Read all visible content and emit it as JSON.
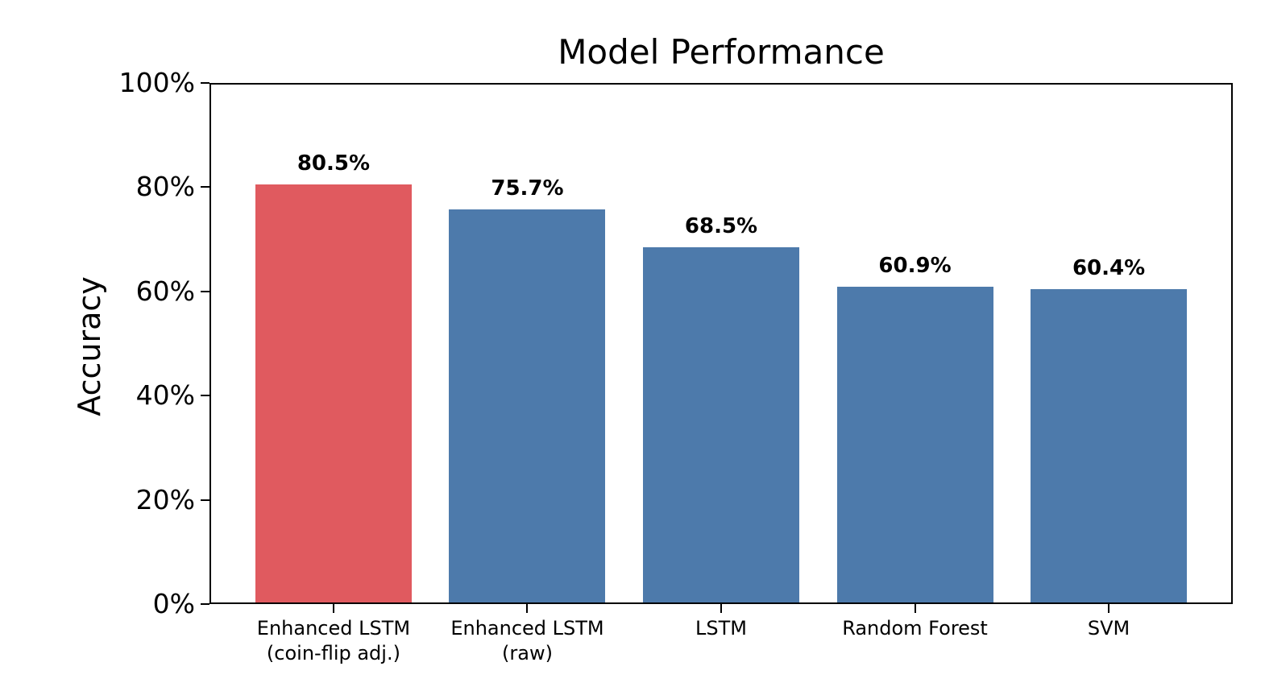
{
  "chart_data": {
    "type": "bar",
    "title": "Model Performance",
    "xlabel": "",
    "ylabel": "Accuracy",
    "categories": [
      "Enhanced LSTM\n(coin-flip adj.)",
      "Enhanced LSTM\n(raw)",
      "LSTM",
      "Random Forest",
      "SVM"
    ],
    "values": [
      80.5,
      75.7,
      68.5,
      60.9,
      60.4
    ],
    "value_labels": [
      "80.5%",
      "75.7%",
      "68.5%",
      "60.9%",
      "60.4%"
    ],
    "bar_colors": [
      "#e05a5f",
      "#4d7aab",
      "#4d7aab",
      "#4d7aab",
      "#4d7aab"
    ],
    "highlight_color": "#e05a5f",
    "base_color": "#4d7aab",
    "ylim": [
      0,
      100
    ],
    "yticks": [
      0,
      20,
      40,
      60,
      80,
      100
    ],
    "ytick_labels": [
      "0%",
      "20%",
      "40%",
      "60%",
      "80%",
      "100%"
    ],
    "grid": false,
    "legend": null
  }
}
